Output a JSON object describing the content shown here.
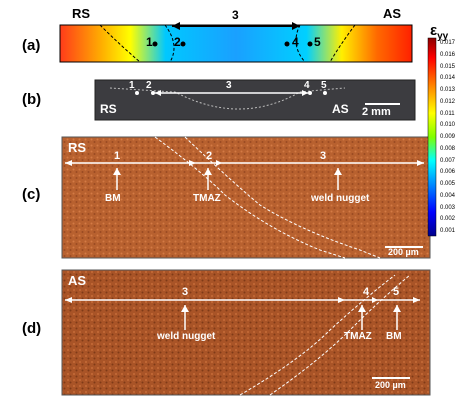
{
  "panels": {
    "a": {
      "label": "(a)",
      "left_side": "RS",
      "right_side": "AS",
      "region_main": "3",
      "markers": [
        "1",
        "2",
        "4",
        "5"
      ]
    },
    "b": {
      "label": "(b)",
      "left_side": "RS",
      "right_side": "AS",
      "region_main": "3",
      "markers": [
        "1",
        "2",
        "4",
        "5"
      ],
      "scale_bar": "2 mm"
    },
    "c": {
      "label": "(c)",
      "side": "RS",
      "regions": [
        "1",
        "2",
        "3"
      ],
      "annotations": [
        "BM",
        "TMAZ",
        "weld nugget"
      ],
      "scale_bar": "200 µm"
    },
    "d": {
      "label": "(d)",
      "side": "AS",
      "regions": [
        "3",
        "4",
        "5"
      ],
      "annotations": [
        "weld nugget",
        "TMAZ",
        "BM"
      ],
      "scale_bar": "200 µm"
    }
  },
  "colorbar": {
    "title": "ε",
    "title_sub": "yy",
    "ticks": [
      "0.017",
      "0.016",
      "0.015",
      "0.014",
      "0.013",
      "0.012",
      "0.011",
      "0.010",
      "0.009",
      "0.008",
      "0.007",
      "0.006",
      "0.005",
      "0.004",
      "0.003",
      "0.002",
      "0.001"
    ],
    "colors": [
      "#8b0000",
      "#ff0000",
      "#ff8c00",
      "#ffff00",
      "#7fff00",
      "#00ffff",
      "#0080ff",
      "#0000ff",
      "#00008b"
    ]
  }
}
